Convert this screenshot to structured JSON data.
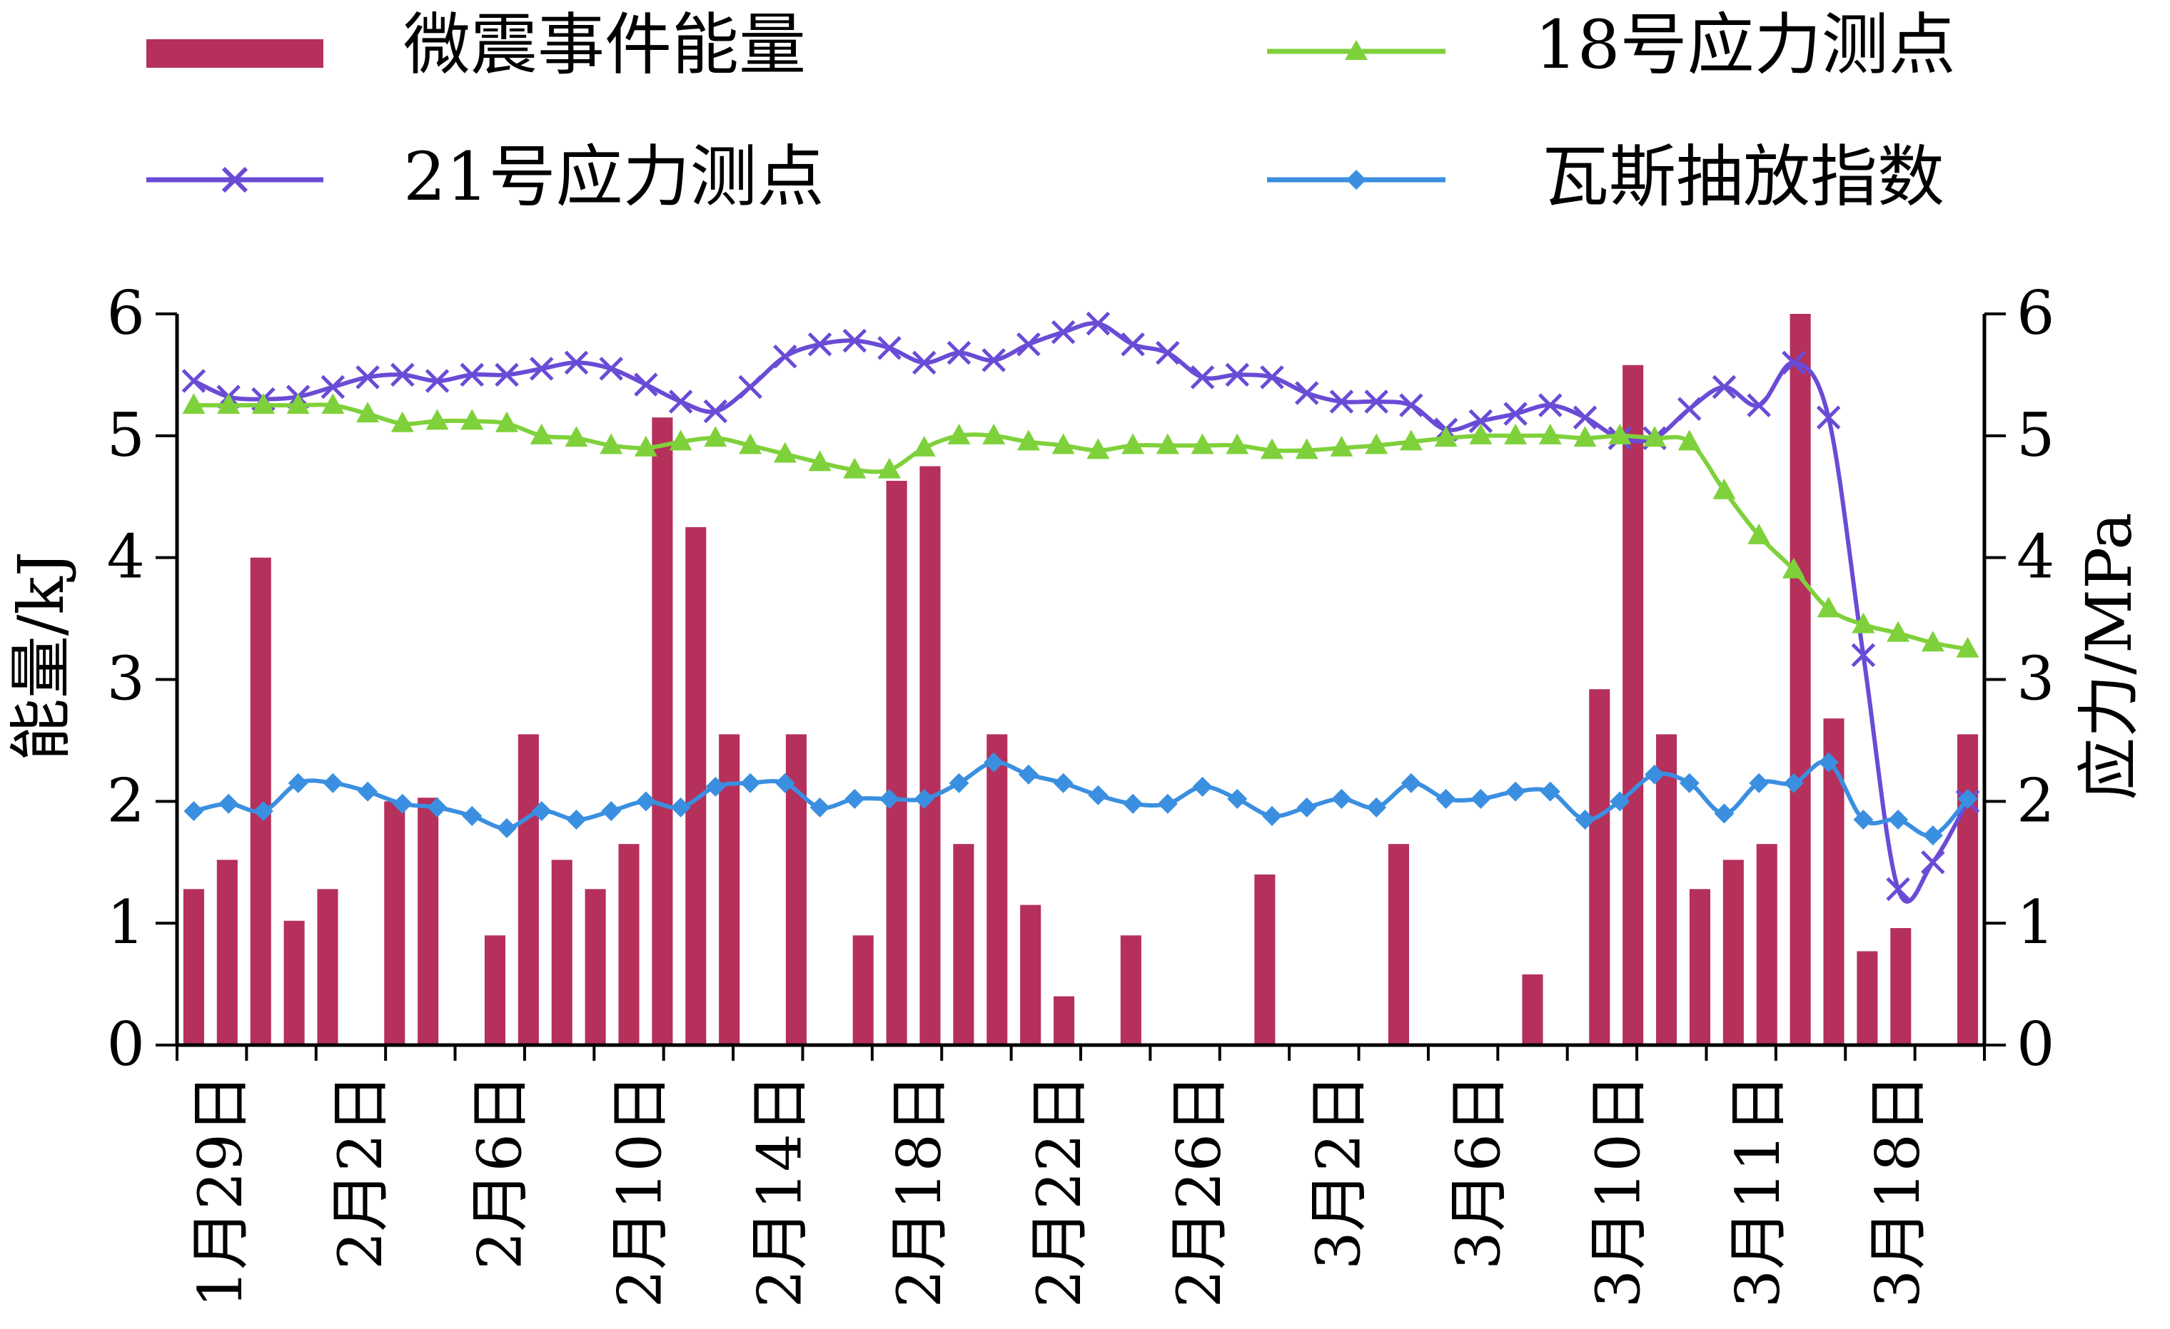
{
  "chart_data": {
    "type": "bar+line",
    "title": "",
    "ylabel_left": "能量/kJ",
    "ylabel_right": "应力/MPa",
    "ylim_left": [
      0,
      6
    ],
    "ylim_right": [
      0,
      6
    ],
    "yticks": [
      "0",
      "1",
      "2",
      "3",
      "4",
      "5",
      "6"
    ],
    "x_axis_labels": [
      "1月29日",
      "2月2日",
      "2月6日",
      "2月10日",
      "2月14日",
      "2月18日",
      "2月22日",
      "2月26日",
      "3月2日",
      "3月6日",
      "3月10日",
      "3月11日",
      "3月18日"
    ],
    "n_points": 54,
    "legend": {
      "bar": "微震事件能量",
      "s18": "18号应力测点",
      "s21": "21号应力测点",
      "gas": "瓦斯抽放指数"
    },
    "colors": {
      "bar": "#b5305a",
      "s18": "#7fd13b",
      "s21": "#6a4bd6",
      "gas": "#3a8fe0"
    },
    "bars": [
      {
        "i": 0,
        "v": 1.28
      },
      {
        "i": 1,
        "v": 1.52
      },
      {
        "i": 2,
        "v": 4.0
      },
      {
        "i": 3,
        "v": 1.02
      },
      {
        "i": 4,
        "v": 1.28
      },
      {
        "i": 6,
        "v": 2.0
      },
      {
        "i": 7,
        "v": 2.03
      },
      {
        "i": 9,
        "v": 0.9
      },
      {
        "i": 10,
        "v": 2.55
      },
      {
        "i": 11,
        "v": 1.52
      },
      {
        "i": 12,
        "v": 1.28
      },
      {
        "i": 13,
        "v": 1.65
      },
      {
        "i": 14,
        "v": 5.15
      },
      {
        "i": 15,
        "v": 4.25
      },
      {
        "i": 16,
        "v": 2.55
      },
      {
        "i": 18,
        "v": 2.55
      },
      {
        "i": 20,
        "v": 0.9
      },
      {
        "i": 21,
        "v": 4.63
      },
      {
        "i": 22,
        "v": 4.75
      },
      {
        "i": 23,
        "v": 1.65
      },
      {
        "i": 24,
        "v": 2.55
      },
      {
        "i": 25,
        "v": 1.15
      },
      {
        "i": 26,
        "v": 0.4
      },
      {
        "i": 28,
        "v": 0.9
      },
      {
        "i": 32,
        "v": 1.4
      },
      {
        "i": 36,
        "v": 1.65
      },
      {
        "i": 40,
        "v": 0.58
      },
      {
        "i": 42,
        "v": 2.92
      },
      {
        "i": 43,
        "v": 5.58
      },
      {
        "i": 44,
        "v": 2.55
      },
      {
        "i": 45,
        "v": 1.28
      },
      {
        "i": 46,
        "v": 1.52
      },
      {
        "i": 47,
        "v": 1.65
      },
      {
        "i": 48,
        "v": 6.0
      },
      {
        "i": 49,
        "v": 2.68
      },
      {
        "i": 50,
        "v": 0.77
      },
      {
        "i": 51,
        "v": 0.96
      },
      {
        "i": 53,
        "v": 2.55
      }
    ],
    "series": [
      {
        "name": "21号应力测点",
        "key": "s21",
        "values": [
          5.45,
          5.32,
          5.3,
          5.32,
          5.4,
          5.48,
          5.5,
          5.45,
          5.5,
          5.5,
          5.55,
          5.6,
          5.55,
          5.42,
          5.28,
          5.2,
          5.4,
          5.65,
          5.75,
          5.78,
          5.72,
          5.6,
          5.68,
          5.62,
          5.75,
          5.85,
          5.92,
          5.75,
          5.68,
          5.48,
          5.5,
          5.48,
          5.35,
          5.28,
          5.28,
          5.25,
          5.05,
          5.12,
          5.18,
          5.25,
          5.15,
          4.98,
          4.98,
          5.22,
          5.4,
          5.25,
          5.6,
          5.15,
          3.2,
          1.28,
          1.5,
          2.0
        ]
      },
      {
        "name": "18号应力测点",
        "key": "s18",
        "values": [
          5.25,
          5.25,
          5.25,
          5.25,
          5.25,
          5.18,
          5.1,
          5.12,
          5.12,
          5.1,
          5.0,
          4.98,
          4.92,
          4.9,
          4.95,
          4.98,
          4.92,
          4.85,
          4.78,
          4.72,
          4.72,
          4.9,
          5.0,
          5.0,
          4.95,
          4.92,
          4.88,
          4.92,
          4.92,
          4.92,
          4.92,
          4.88,
          4.88,
          4.9,
          4.92,
          4.95,
          4.98,
          5.0,
          5.0,
          5.0,
          4.98,
          5.0,
          4.98,
          4.95,
          4.55,
          4.18,
          3.9,
          3.58,
          3.45,
          3.38,
          3.3,
          3.25
        ]
      },
      {
        "name": "瓦斯抽放指数",
        "key": "gas",
        "values": [
          1.92,
          1.98,
          1.92,
          2.15,
          2.15,
          2.08,
          1.98,
          1.95,
          1.88,
          1.78,
          1.92,
          1.85,
          1.92,
          2.0,
          1.95,
          2.12,
          2.15,
          2.15,
          1.95,
          2.02,
          2.02,
          2.02,
          2.15,
          2.32,
          2.22,
          2.15,
          2.05,
          1.98,
          1.98,
          2.12,
          2.02,
          1.88,
          1.95,
          2.02,
          1.95,
          2.15,
          2.02,
          2.02,
          2.08,
          2.08,
          1.85,
          2.0,
          2.22,
          2.15,
          1.9,
          2.15,
          2.15,
          2.32,
          1.85,
          1.85,
          1.72,
          2.02
        ]
      }
    ]
  }
}
